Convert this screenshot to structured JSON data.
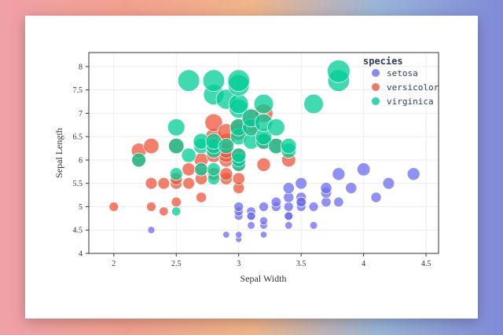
{
  "chart_data": {
    "type": "scatter",
    "title": "",
    "xlabel": "Sepal Width",
    "ylabel": "Sepal Length",
    "xlim": [
      1.8,
      4.6
    ],
    "ylim": [
      4.0,
      8.3
    ],
    "x_ticks": [
      "2",
      "2.5",
      "3",
      "3.5",
      "4",
      "4.5"
    ],
    "y_ticks": [
      "4",
      "4.5",
      "5",
      "5.5",
      "6",
      "6.5",
      "7",
      "7.5",
      "8"
    ],
    "grid": true,
    "legend_title": "species",
    "legend_position": "top-right",
    "size_encoding": "larger markers for higher sepal length",
    "series": [
      {
        "name": "setosa",
        "color": "#6b6cf0",
        "points": [
          [
            2.3,
            4.5
          ],
          [
            2.9,
            4.4
          ],
          [
            3.0,
            4.3
          ],
          [
            3.0,
            4.4
          ],
          [
            3.0,
            4.8
          ],
          [
            3.0,
            4.9
          ],
          [
            3.0,
            5.0
          ],
          [
            3.1,
            4.6
          ],
          [
            3.1,
            4.8
          ],
          [
            3.1,
            4.9
          ],
          [
            3.2,
            4.4
          ],
          [
            3.2,
            4.6
          ],
          [
            3.2,
            4.7
          ],
          [
            3.2,
            5.0
          ],
          [
            3.3,
            5.0
          ],
          [
            3.3,
            5.1
          ],
          [
            3.4,
            4.6
          ],
          [
            3.4,
            4.8
          ],
          [
            3.4,
            5.0
          ],
          [
            3.4,
            5.2
          ],
          [
            3.4,
            5.4
          ],
          [
            3.5,
            5.0
          ],
          [
            3.5,
            5.1
          ],
          [
            3.5,
            5.2
          ],
          [
            3.5,
            5.5
          ],
          [
            3.6,
            4.6
          ],
          [
            3.6,
            5.0
          ],
          [
            3.7,
            5.1
          ],
          [
            3.7,
            5.3
          ],
          [
            3.7,
            5.4
          ],
          [
            3.8,
            5.1
          ],
          [
            3.8,
            5.7
          ],
          [
            3.9,
            5.4
          ],
          [
            4.0,
            5.8
          ],
          [
            4.1,
            5.2
          ],
          [
            4.2,
            5.5
          ],
          [
            4.4,
            5.7
          ],
          [
            3.1,
            4.8
          ],
          [
            3.4,
            4.8
          ],
          [
            3.5,
            5.1
          ]
        ]
      },
      {
        "name": "versicolor",
        "color": "#ef553b",
        "points": [
          [
            2.0,
            5.0
          ],
          [
            2.2,
            6.0
          ],
          [
            2.2,
            6.2
          ],
          [
            2.3,
            5.0
          ],
          [
            2.3,
            5.5
          ],
          [
            2.3,
            6.3
          ],
          [
            2.4,
            4.9
          ],
          [
            2.4,
            5.5
          ],
          [
            2.5,
            5.1
          ],
          [
            2.5,
            5.5
          ],
          [
            2.5,
            5.6
          ],
          [
            2.5,
            6.3
          ],
          [
            2.6,
            5.5
          ],
          [
            2.6,
            5.8
          ],
          [
            2.7,
            5.2
          ],
          [
            2.7,
            5.6
          ],
          [
            2.7,
            5.8
          ],
          [
            2.7,
            6.0
          ],
          [
            2.8,
            5.7
          ],
          [
            2.8,
            6.1
          ],
          [
            2.8,
            6.5
          ],
          [
            2.8,
            6.8
          ],
          [
            2.9,
            5.6
          ],
          [
            2.9,
            5.7
          ],
          [
            2.9,
            6.0
          ],
          [
            2.9,
            6.1
          ],
          [
            2.9,
            6.2
          ],
          [
            2.9,
            6.4
          ],
          [
            2.9,
            6.6
          ],
          [
            3.0,
            5.4
          ],
          [
            3.0,
            5.6
          ],
          [
            3.0,
            5.9
          ],
          [
            3.0,
            6.1
          ],
          [
            3.0,
            6.6
          ],
          [
            3.0,
            6.7
          ],
          [
            3.1,
            6.7
          ],
          [
            3.1,
            6.9
          ],
          [
            3.2,
            5.9
          ],
          [
            3.2,
            6.4
          ],
          [
            3.2,
            7.0
          ],
          [
            3.3,
            6.3
          ],
          [
            3.4,
            6.0
          ]
        ]
      },
      {
        "name": "virginica",
        "color": "#00cc96",
        "points": [
          [
            2.2,
            6.0
          ],
          [
            2.5,
            4.9
          ],
          [
            2.5,
            5.7
          ],
          [
            2.5,
            6.3
          ],
          [
            2.5,
            6.7
          ],
          [
            2.6,
            6.1
          ],
          [
            2.6,
            7.7
          ],
          [
            2.7,
            5.8
          ],
          [
            2.7,
            6.3
          ],
          [
            2.7,
            6.4
          ],
          [
            2.8,
            5.6
          ],
          [
            2.8,
            5.8
          ],
          [
            2.8,
            6.2
          ],
          [
            2.8,
            6.3
          ],
          [
            2.8,
            6.4
          ],
          [
            2.8,
            7.4
          ],
          [
            2.8,
            7.7
          ],
          [
            2.9,
            6.3
          ],
          [
            2.9,
            7.3
          ],
          [
            3.0,
            5.9
          ],
          [
            3.0,
            6.0
          ],
          [
            3.0,
            6.1
          ],
          [
            3.0,
            6.5
          ],
          [
            3.0,
            6.7
          ],
          [
            3.0,
            7.1
          ],
          [
            3.0,
            7.2
          ],
          [
            3.0,
            7.6
          ],
          [
            3.0,
            7.7
          ],
          [
            3.1,
            6.4
          ],
          [
            3.1,
            6.7
          ],
          [
            3.1,
            6.9
          ],
          [
            3.2,
            6.4
          ],
          [
            3.2,
            6.5
          ],
          [
            3.2,
            6.8
          ],
          [
            3.2,
            7.2
          ],
          [
            3.3,
            6.3
          ],
          [
            3.3,
            6.7
          ],
          [
            3.4,
            6.2
          ],
          [
            3.4,
            6.3
          ],
          [
            3.6,
            7.2
          ],
          [
            3.8,
            7.7
          ],
          [
            3.8,
            7.9
          ]
        ]
      }
    ]
  }
}
